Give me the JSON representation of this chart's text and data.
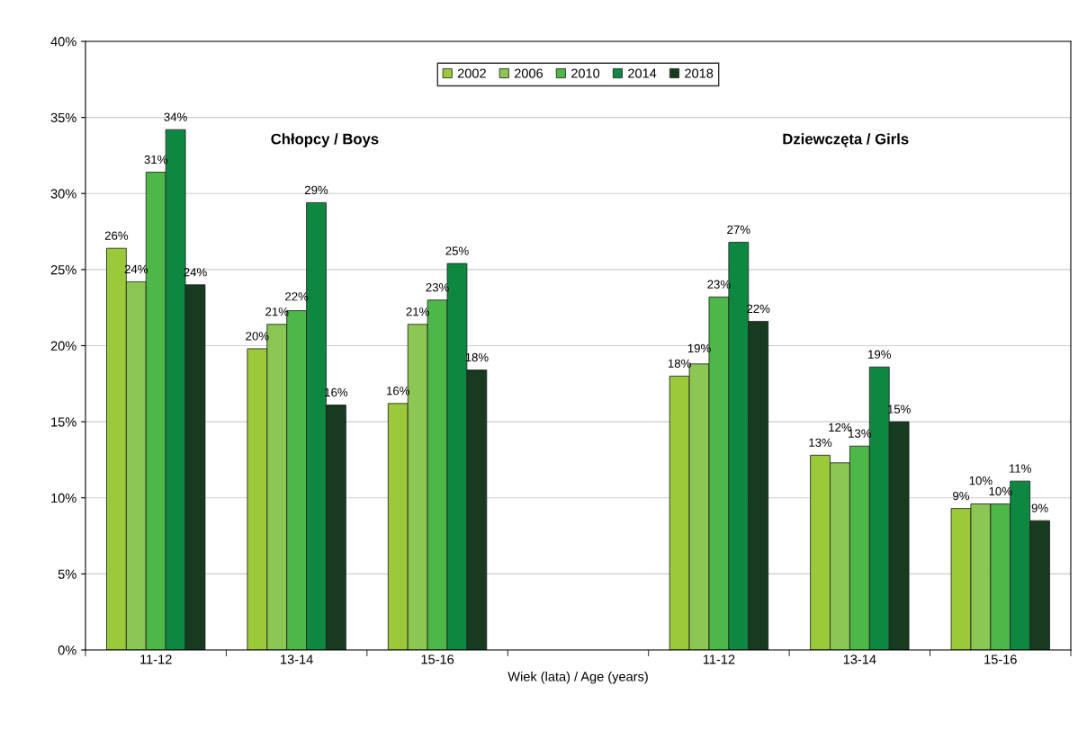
{
  "chart_data": {
    "type": "bar",
    "xlabel": "Wiek (lata) / Age (years)",
    "categories": [
      "11-12",
      "13-14",
      "15-16",
      null,
      "11-12",
      "13-14",
      "15-16"
    ],
    "series": [
      {
        "name": "2002",
        "color": "#9bc93a",
        "values": [
          26.4,
          19.8,
          16.2,
          null,
          18.0,
          12.8,
          9.3
        ],
        "value_labels": [
          "26%",
          "20%",
          "16%",
          null,
          "18%",
          "13%",
          "9%"
        ]
      },
      {
        "name": "2006",
        "color": "#8cc653",
        "values": [
          24.2,
          21.4,
          21.4,
          null,
          18.8,
          12.3,
          9.6
        ],
        "value_labels": [
          "24%",
          "21%",
          "21%",
          null,
          "19%",
          "12%",
          "10%"
        ]
      },
      {
        "name": "2010",
        "color": "#4db748",
        "values": [
          31.4,
          22.3,
          23.0,
          null,
          23.2,
          13.4,
          9.6
        ],
        "value_labels": [
          "31%",
          "22%",
          "23%",
          null,
          "23%",
          "13%",
          "10%"
        ]
      },
      {
        "name": "2014",
        "color": "#0e8740",
        "values": [
          34.2,
          29.4,
          25.4,
          null,
          26.8,
          18.6,
          11.1
        ],
        "value_labels": [
          "34%",
          "29%",
          "25%",
          null,
          "27%",
          "19%",
          "11%"
        ]
      },
      {
        "name": "2018",
        "color": "#183a1e",
        "values": [
          24.0,
          16.1,
          18.4,
          null,
          21.6,
          15.0,
          8.5
        ],
        "value_labels": [
          "24%",
          "16%",
          "18%",
          null,
          "22%",
          "15%",
          "9%"
        ]
      }
    ],
    "ylim": [
      0,
      40
    ],
    "yticks": [
      {
        "value": 0,
        "label": "0%"
      },
      {
        "value": 5,
        "label": "5%"
      },
      {
        "value": 10,
        "label": "10%"
      },
      {
        "value": 15,
        "label": "15%"
      },
      {
        "value": 20,
        "label": "20%"
      },
      {
        "value": 25,
        "label": "25%"
      },
      {
        "value": 30,
        "label": "30%"
      },
      {
        "value": 35,
        "label": "35%"
      },
      {
        "value": 40,
        "label": "40%"
      }
    ],
    "grid": "y",
    "legend": "top",
    "annotations": [
      "Chłopcy / Boys",
      "Dziewczęta / Girls"
    ]
  }
}
